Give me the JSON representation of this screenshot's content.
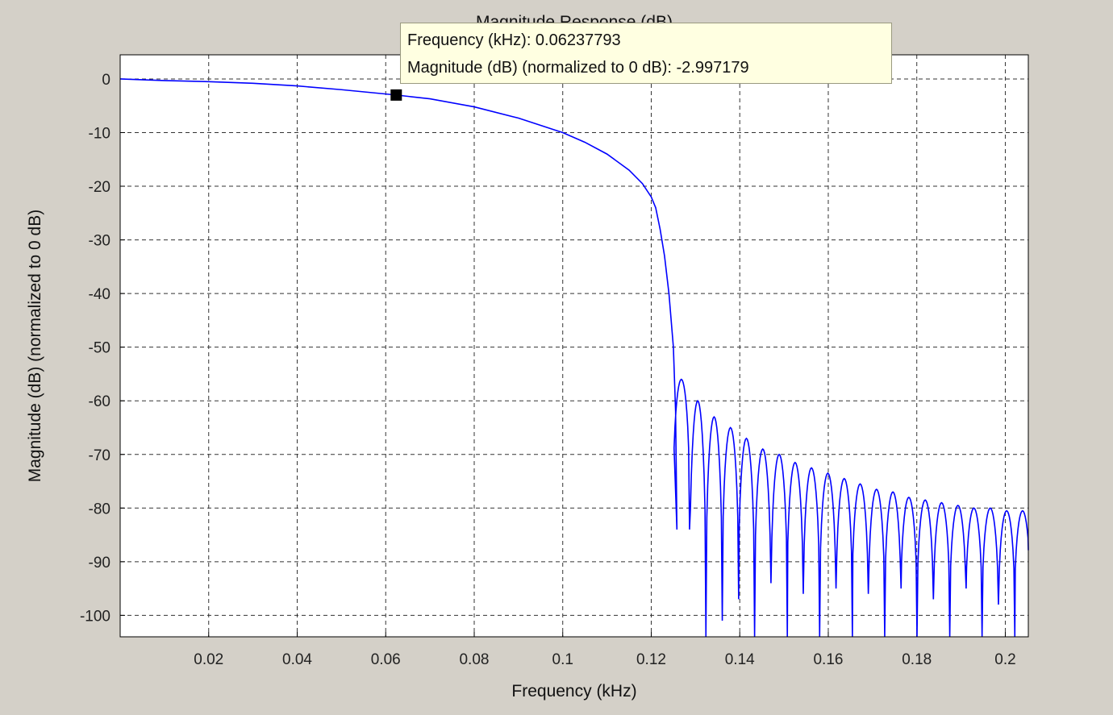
{
  "chart_data": {
    "type": "line",
    "title": "Magnitude Response (dB)",
    "xlabel": "Frequency (kHz)",
    "ylabel": "Magnitude (dB) (normalized to 0 dB)",
    "xlim": [
      0,
      0.2052
    ],
    "ylim": [
      -104,
      4.5
    ],
    "xticks": [
      0.02,
      0.04,
      0.06,
      0.08,
      0.1,
      0.12,
      0.14,
      0.16,
      0.18,
      0.2
    ],
    "xtick_labels": [
      "0.02",
      "0.04",
      "0.06",
      "0.08",
      "0.1",
      "0.12",
      "0.14",
      "0.16",
      "0.18",
      "0.2"
    ],
    "yticks": [
      0,
      -10,
      -20,
      -30,
      -40,
      -50,
      -60,
      -70,
      -80,
      -90,
      -100
    ],
    "ytick_labels": [
      "0",
      "-10",
      "-20",
      "-30",
      "-40",
      "-50",
      "-60",
      "-70",
      "-80",
      "-90",
      "-100"
    ],
    "grid": true,
    "series": [
      {
        "color": "#0000ff",
        "passband": [
          [
            0,
            0
          ],
          [
            0.01,
            -0.3
          ],
          [
            0.02,
            -0.5
          ],
          [
            0.03,
            -0.8
          ],
          [
            0.04,
            -1.3
          ],
          [
            0.05,
            -2.0
          ],
          [
            0.06237793,
            -2.997179
          ],
          [
            0.07,
            -3.7
          ],
          [
            0.08,
            -5.2
          ],
          [
            0.09,
            -7.3
          ],
          [
            0.1,
            -10.0
          ],
          [
            0.105,
            -11.8
          ],
          [
            0.11,
            -14.0
          ],
          [
            0.115,
            -17.0
          ],
          [
            0.118,
            -19.5
          ],
          [
            0.12,
            -22.0
          ],
          [
            0.121,
            -24.0
          ],
          [
            0.122,
            -28.0
          ],
          [
            0.123,
            -33.0
          ],
          [
            0.124,
            -40.0
          ],
          [
            0.125,
            -50.0
          ],
          [
            0.1255,
            -62.0
          ],
          [
            0.1258,
            -84.0
          ]
        ],
        "sidelobes": [
          {
            "f": 0.1268,
            "peak": -56,
            "null": -84
          },
          {
            "f": 0.1305,
            "peak": -60,
            "null": -104
          },
          {
            "f": 0.1342,
            "peak": -63,
            "null": -101
          },
          {
            "f": 0.1379,
            "peak": -65,
            "null": -97
          },
          {
            "f": 0.1415,
            "peak": -67,
            "null": -104
          },
          {
            "f": 0.1452,
            "peak": -69,
            "null": -94
          },
          {
            "f": 0.1489,
            "peak": -70,
            "null": -104
          },
          {
            "f": 0.1525,
            "peak": -71.5,
            "null": -96
          },
          {
            "f": 0.1562,
            "peak": -72.5,
            "null": -104
          },
          {
            "f": 0.1599,
            "peak": -73.5,
            "null": -95
          },
          {
            "f": 0.1636,
            "peak": -74.5,
            "null": -104
          },
          {
            "f": 0.1672,
            "peak": -75.5,
            "null": -96
          },
          {
            "f": 0.1709,
            "peak": -76.5,
            "null": -104
          },
          {
            "f": 0.1746,
            "peak": -77,
            "null": -95
          },
          {
            "f": 0.1782,
            "peak": -78,
            "null": -104
          },
          {
            "f": 0.1819,
            "peak": -78.5,
            "null": -97
          },
          {
            "f": 0.1856,
            "peak": -79,
            "null": -104
          },
          {
            "f": 0.1893,
            "peak": -79.5,
            "null": -95
          },
          {
            "f": 0.1929,
            "peak": -80,
            "null": -104
          },
          {
            "f": 0.1966,
            "peak": -80,
            "null": -98
          },
          {
            "f": 0.2003,
            "peak": -80.5,
            "null": -104
          },
          {
            "f": 0.2039,
            "peak": -80.5,
            "null": -95
          }
        ]
      }
    ],
    "marker": {
      "x": 0.06237793,
      "y": -2.997179
    }
  },
  "tooltip": {
    "line1": "Frequency (kHz): 0.06237793",
    "line2": "Magnitude (dB) (normalized to 0 dB): -2.997179"
  }
}
